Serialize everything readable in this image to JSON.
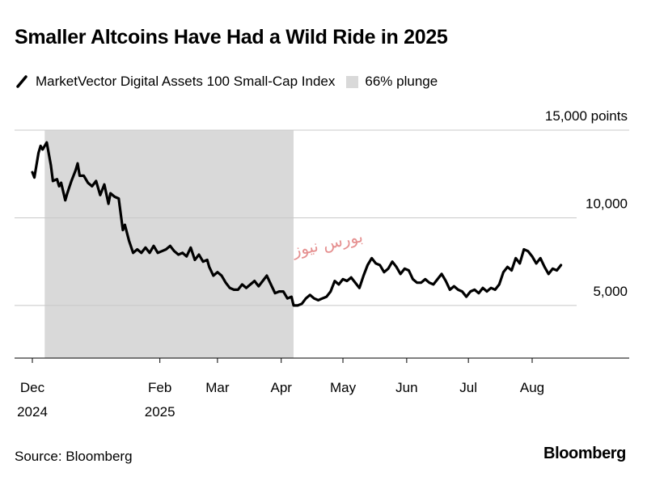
{
  "title": "Smaller Altcoins Have Had a Wild Ride in 2025",
  "legend": [
    {
      "label": "MarketVector Digital Assets 100 Small-Cap Index",
      "type": "line",
      "color": "#000000"
    },
    {
      "label": "66% plunge",
      "type": "area",
      "color": "#d9d9d9"
    }
  ],
  "source": "Source: Bloomberg",
  "brand": "Bloomberg",
  "watermark_text": "بورس نیوز",
  "chart_data": {
    "type": "line",
    "title": "Smaller Altcoins Have Had a Wild Ride in 2025",
    "xlabel": "",
    "ylabel": "",
    "ylim": [
      2000,
      15000
    ],
    "yticks": [
      {
        "value": 15000,
        "label": "15,000 points"
      },
      {
        "value": 10000,
        "label": "10,000"
      },
      {
        "value": 5000,
        "label": "5,000"
      }
    ],
    "xticks": [
      {
        "value": "2024-12-01",
        "label": "Dec",
        "label2": "2024"
      },
      {
        "value": "2025-02-01",
        "label": "Feb",
        "label2": "2025"
      },
      {
        "value": "2025-03-01",
        "label": "Mar",
        "label2": ""
      },
      {
        "value": "2025-04-01",
        "label": "Apr",
        "label2": ""
      },
      {
        "value": "2025-05-01",
        "label": "May",
        "label2": ""
      },
      {
        "value": "2025-06-01",
        "label": "Jun",
        "label2": ""
      },
      {
        "value": "2025-07-01",
        "label": "Jul",
        "label2": ""
      },
      {
        "value": "2025-08-01",
        "label": "Aug",
        "label2": ""
      }
    ],
    "shaded_region": {
      "label": "66% plunge",
      "start": "2024-12-07",
      "end": "2025-04-07"
    },
    "grid": true,
    "legend_position": "top-left",
    "series": [
      {
        "name": "MarketVector Digital Assets 100 Small-Cap Index",
        "color": "#000000",
        "points": [
          [
            "2024-12-01",
            12600
          ],
          [
            "2024-12-02",
            12300
          ],
          [
            "2024-12-04",
            13700
          ],
          [
            "2024-12-05",
            14100
          ],
          [
            "2024-12-06",
            13900
          ],
          [
            "2024-12-08",
            14300
          ],
          [
            "2024-12-10",
            13000
          ],
          [
            "2024-12-11",
            12100
          ],
          [
            "2024-12-13",
            12200
          ],
          [
            "2024-12-14",
            11800
          ],
          [
            "2024-12-15",
            12000
          ],
          [
            "2024-12-17",
            11000
          ],
          [
            "2024-12-18",
            11400
          ],
          [
            "2024-12-20",
            12100
          ],
          [
            "2024-12-22",
            12700
          ],
          [
            "2024-12-23",
            13100
          ],
          [
            "2024-12-24",
            12400
          ],
          [
            "2024-12-26",
            12400
          ],
          [
            "2024-12-28",
            12000
          ],
          [
            "2024-12-30",
            11800
          ],
          [
            "2025-01-01",
            12100
          ],
          [
            "2025-01-03",
            11300
          ],
          [
            "2025-01-05",
            11900
          ],
          [
            "2025-01-07",
            10800
          ],
          [
            "2025-01-08",
            11400
          ],
          [
            "2025-01-10",
            11200
          ],
          [
            "2025-01-12",
            11100
          ],
          [
            "2025-01-14",
            9300
          ],
          [
            "2025-01-15",
            9600
          ],
          [
            "2025-01-17",
            8700
          ],
          [
            "2025-01-19",
            8000
          ],
          [
            "2025-01-21",
            8200
          ],
          [
            "2025-01-23",
            8000
          ],
          [
            "2025-01-25",
            8300
          ],
          [
            "2025-01-27",
            8000
          ],
          [
            "2025-01-29",
            8400
          ],
          [
            "2025-01-31",
            8000
          ],
          [
            "2025-02-02",
            8100
          ],
          [
            "2025-02-04",
            8200
          ],
          [
            "2025-02-06",
            8400
          ],
          [
            "2025-02-08",
            8100
          ],
          [
            "2025-02-10",
            7900
          ],
          [
            "2025-02-12",
            8000
          ],
          [
            "2025-02-14",
            7800
          ],
          [
            "2025-02-16",
            8300
          ],
          [
            "2025-02-18",
            7600
          ],
          [
            "2025-02-20",
            7900
          ],
          [
            "2025-02-22",
            7500
          ],
          [
            "2025-02-24",
            7600
          ],
          [
            "2025-02-25",
            7200
          ],
          [
            "2025-02-27",
            6700
          ],
          [
            "2025-03-01",
            6900
          ],
          [
            "2025-03-03",
            6700
          ],
          [
            "2025-03-05",
            6300
          ],
          [
            "2025-03-07",
            6000
          ],
          [
            "2025-03-09",
            5900
          ],
          [
            "2025-03-11",
            5900
          ],
          [
            "2025-03-13",
            6200
          ],
          [
            "2025-03-15",
            6000
          ],
          [
            "2025-03-17",
            6200
          ],
          [
            "2025-03-19",
            6400
          ],
          [
            "2025-03-21",
            6100
          ],
          [
            "2025-03-23",
            6400
          ],
          [
            "2025-03-25",
            6700
          ],
          [
            "2025-03-27",
            6200
          ],
          [
            "2025-03-29",
            5700
          ],
          [
            "2025-03-31",
            5800
          ],
          [
            "2025-04-02",
            5800
          ],
          [
            "2025-04-04",
            5400
          ],
          [
            "2025-04-06",
            5500
          ],
          [
            "2025-04-07",
            5000
          ],
          [
            "2025-04-09",
            5000
          ],
          [
            "2025-04-11",
            5100
          ],
          [
            "2025-04-13",
            5400
          ],
          [
            "2025-04-15",
            5600
          ],
          [
            "2025-04-17",
            5400
          ],
          [
            "2025-04-19",
            5300
          ],
          [
            "2025-04-21",
            5400
          ],
          [
            "2025-04-23",
            5500
          ],
          [
            "2025-04-25",
            5800
          ],
          [
            "2025-04-27",
            6400
          ],
          [
            "2025-04-29",
            6200
          ],
          [
            "2025-05-01",
            6500
          ],
          [
            "2025-05-03",
            6400
          ],
          [
            "2025-05-05",
            6600
          ],
          [
            "2025-05-07",
            6300
          ],
          [
            "2025-05-09",
            6000
          ],
          [
            "2025-05-11",
            6700
          ],
          [
            "2025-05-13",
            7300
          ],
          [
            "2025-05-15",
            7700
          ],
          [
            "2025-05-17",
            7400
          ],
          [
            "2025-05-19",
            7300
          ],
          [
            "2025-05-21",
            6900
          ],
          [
            "2025-05-23",
            7100
          ],
          [
            "2025-05-25",
            7500
          ],
          [
            "2025-05-27",
            7200
          ],
          [
            "2025-05-29",
            6800
          ],
          [
            "2025-05-31",
            7100
          ],
          [
            "2025-06-02",
            7000
          ],
          [
            "2025-06-04",
            6500
          ],
          [
            "2025-06-06",
            6300
          ],
          [
            "2025-06-08",
            6300
          ],
          [
            "2025-06-10",
            6500
          ],
          [
            "2025-06-12",
            6300
          ],
          [
            "2025-06-14",
            6200
          ],
          [
            "2025-06-16",
            6500
          ],
          [
            "2025-06-18",
            6800
          ],
          [
            "2025-06-20",
            6400
          ],
          [
            "2025-06-22",
            5900
          ],
          [
            "2025-06-24",
            6100
          ],
          [
            "2025-06-26",
            5900
          ],
          [
            "2025-06-28",
            5800
          ],
          [
            "2025-06-30",
            5500
          ],
          [
            "2025-07-02",
            5800
          ],
          [
            "2025-07-04",
            5900
          ],
          [
            "2025-07-06",
            5700
          ],
          [
            "2025-07-08",
            6000
          ],
          [
            "2025-07-10",
            5800
          ],
          [
            "2025-07-12",
            6000
          ],
          [
            "2025-07-14",
            5900
          ],
          [
            "2025-07-16",
            6200
          ],
          [
            "2025-07-18",
            6900
          ],
          [
            "2025-07-20",
            7200
          ],
          [
            "2025-07-22",
            7000
          ],
          [
            "2025-07-24",
            7700
          ],
          [
            "2025-07-26",
            7400
          ],
          [
            "2025-07-28",
            8200
          ],
          [
            "2025-07-30",
            8100
          ],
          [
            "2025-08-01",
            7800
          ],
          [
            "2025-08-03",
            7400
          ],
          [
            "2025-08-05",
            7700
          ],
          [
            "2025-08-07",
            7200
          ],
          [
            "2025-08-09",
            6800
          ],
          [
            "2025-08-11",
            7100
          ],
          [
            "2025-08-13",
            7000
          ],
          [
            "2025-08-15",
            7300
          ]
        ]
      }
    ]
  }
}
